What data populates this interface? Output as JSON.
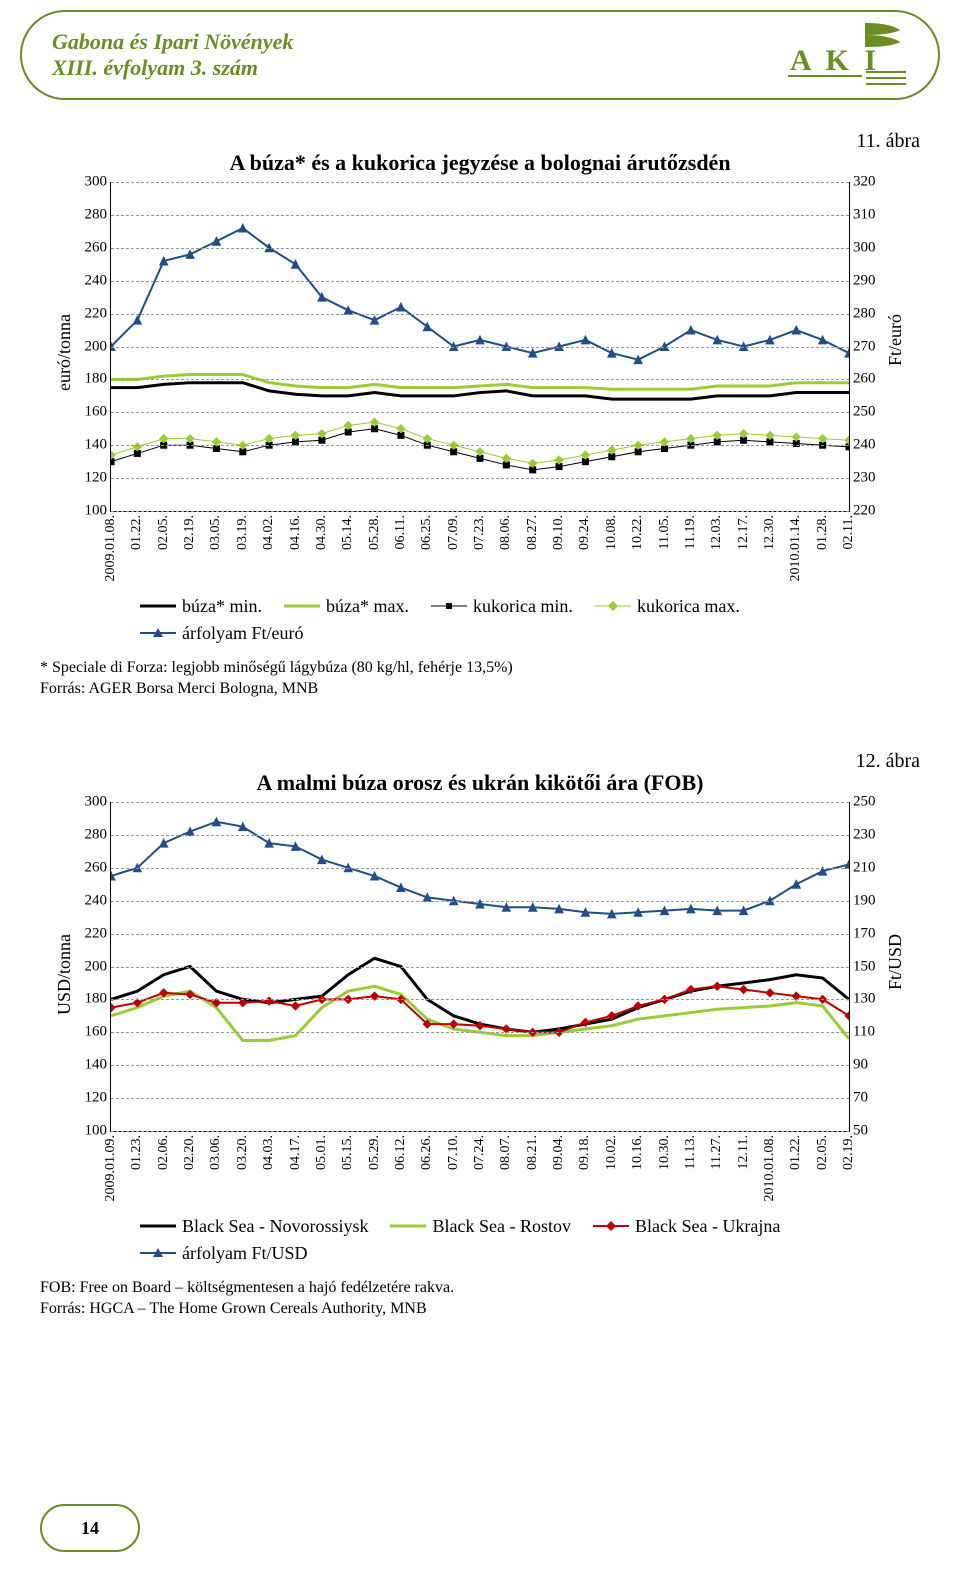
{
  "header": {
    "line1": "Gabona és Ipari Növények",
    "line2": "XIII. évfolyam 3. szám",
    "logo_text": "A K I",
    "logo_color": "#6b8e23"
  },
  "page_number": "14",
  "chart1": {
    "fig_label": "11. ábra",
    "title": "A búza* és a kukorica jegyzése a bolognai árutőzsdén",
    "y_left_label": "euró/tonna",
    "y_right_label": "Ft/euró",
    "y_left_min": 100,
    "y_left_max": 300,
    "y_left_step": 20,
    "y_right_min": 220,
    "y_right_max": 320,
    "y_right_step": 10,
    "x_labels": [
      "2009.01.08.",
      "01.22.",
      "02.05.",
      "02.19.",
      "03.05.",
      "03.19.",
      "04.02.",
      "04.16.",
      "04.30.",
      "05.14.",
      "05.28.",
      "06.11.",
      "06.25.",
      "07.09.",
      "07.23.",
      "08.06.",
      "08.27.",
      "09.10.",
      "09.24.",
      "10.08.",
      "10.22.",
      "11.05.",
      "11.19.",
      "12.03.",
      "12.17.",
      "12.30.",
      "2010.01.14.",
      "01.28.",
      "02.11."
    ],
    "series": {
      "buza_min": {
        "label": "búza* min.",
        "color": "#000000",
        "width": 3,
        "marker": "none",
        "values": [
          175,
          175,
          177,
          178,
          178,
          178,
          173,
          171,
          170,
          170,
          172,
          170,
          170,
          170,
          172,
          173,
          170,
          170,
          170,
          168,
          168,
          168,
          168,
          170,
          170,
          170,
          172,
          172,
          172
        ]
      },
      "buza_max": {
        "label": "búza* max.",
        "color": "#9acd32",
        "width": 3,
        "marker": "none",
        "values": [
          180,
          180,
          182,
          183,
          183,
          183,
          178,
          176,
          175,
          175,
          177,
          175,
          175,
          175,
          176,
          177,
          175,
          175,
          175,
          174,
          174,
          174,
          174,
          176,
          176,
          176,
          178,
          178,
          178
        ]
      },
      "kukorica_min": {
        "label": "kukorica min.",
        "color": "#000000",
        "width": 1,
        "marker": "square",
        "values": [
          130,
          135,
          140,
          140,
          138,
          136,
          140,
          142,
          143,
          148,
          150,
          146,
          140,
          136,
          132,
          128,
          125,
          127,
          130,
          133,
          136,
          138,
          140,
          142,
          143,
          142,
          141,
          140,
          139
        ]
      },
      "kukorica_max": {
        "label": "kukorica max.",
        "color": "#9acd32",
        "width": 1,
        "marker": "diamond",
        "values": [
          134,
          139,
          144,
          144,
          142,
          140,
          144,
          146,
          147,
          152,
          154,
          150,
          144,
          140,
          136,
          132,
          129,
          131,
          134,
          137,
          140,
          142,
          144,
          146,
          147,
          146,
          145,
          144,
          143
        ]
      },
      "arfolyam": {
        "label": "árfolyam Ft/euró",
        "color": "#1f4e8c",
        "width": 2,
        "marker": "triangle",
        "axis": "right",
        "values": [
          270,
          278,
          296,
          298,
          302,
          306,
          300,
          295,
          285,
          281,
          278,
          282,
          276,
          270,
          272,
          270,
          268,
          270,
          272,
          268,
          266,
          270,
          275,
          272,
          270,
          272,
          275,
          272,
          268
        ]
      }
    },
    "legend_order": [
      "buza_min",
      "buza_max",
      "kukorica_min",
      "kukorica_max",
      "arfolyam"
    ],
    "footnote1": "* Speciale di Forza: legjobb minőségű lágybúza (80 kg/hl, fehérje 13,5%)",
    "footnote2": "Forrás: AGER Borsa Merci Bologna, MNB",
    "grid_color": "#999999",
    "background": "#ffffff"
  },
  "chart2": {
    "fig_label": "12. ábra",
    "title": "A malmi búza orosz és ukrán kikötői ára (FOB)",
    "y_left_label": "USD/tonna",
    "y_right_label": "Ft/USD",
    "y_left_min": 100,
    "y_left_max": 300,
    "y_left_step": 20,
    "y_right_min": 50,
    "y_right_max": 250,
    "y_right_step": 20,
    "x_labels": [
      "2009.01.09.",
      "01.23.",
      "02.06.",
      "02.20.",
      "03.06.",
      "03.20.",
      "04.03.",
      "04.17.",
      "05.01.",
      "05.15.",
      "05.29.",
      "06.12.",
      "06.26.",
      "07.10.",
      "07.24.",
      "08.07.",
      "08.21.",
      "09.04.",
      "09.18.",
      "10.02.",
      "10.16.",
      "10.30.",
      "11.13.",
      "11.27.",
      "12.11.",
      "2010.01.08.",
      "01.22.",
      "02.05.",
      "02.19."
    ],
    "series": {
      "novo": {
        "label": "Black Sea - Novorossiysk",
        "color": "#000000",
        "width": 3,
        "marker": "none",
        "values": [
          180,
          185,
          195,
          200,
          185,
          180,
          178,
          180,
          182,
          195,
          205,
          200,
          180,
          170,
          165,
          162,
          160,
          162,
          165,
          168,
          175,
          180,
          185,
          188,
          190,
          192,
          195,
          193,
          180
        ]
      },
      "rostov": {
        "label": "Black Sea - Rostov",
        "color": "#9acd32",
        "width": 3,
        "marker": "none",
        "values": [
          170,
          175,
          182,
          185,
          175,
          155,
          155,
          158,
          175,
          185,
          188,
          183,
          168,
          162,
          160,
          158,
          158,
          160,
          162,
          164,
          168,
          170,
          172,
          174,
          175,
          176,
          178,
          176,
          156
        ]
      },
      "ukrajna": {
        "label": "Black Sea - Ukrajna",
        "color": "#c00000",
        "width": 2,
        "marker": "diamond",
        "values": [
          175,
          178,
          184,
          183,
          178,
          178,
          179,
          176,
          180,
          180,
          182,
          180,
          165,
          165,
          164,
          162,
          160,
          160,
          166,
          170,
          176,
          180,
          186,
          188,
          186,
          184,
          182,
          180,
          170
        ]
      },
      "arfolyam": {
        "label": "árfolyam Ft/USD",
        "color": "#1f4e8c",
        "width": 2,
        "marker": "triangle",
        "axis": "right",
        "values": [
          205,
          210,
          225,
          232,
          238,
          235,
          225,
          223,
          215,
          210,
          205,
          198,
          192,
          190,
          188,
          186,
          186,
          185,
          183,
          182,
          183,
          184,
          185,
          184,
          184,
          190,
          200,
          208,
          212
        ]
      }
    },
    "legend_order": [
      "novo",
      "rostov",
      "ukrajna",
      "arfolyam"
    ],
    "footnote1": "FOB: Free on Board – költségmentesen a hajó fedélzetére rakva.",
    "footnote2": "Forrás: HGCA – The Home Grown Cereals Authority, MNB",
    "grid_color": "#999999",
    "background": "#ffffff"
  }
}
